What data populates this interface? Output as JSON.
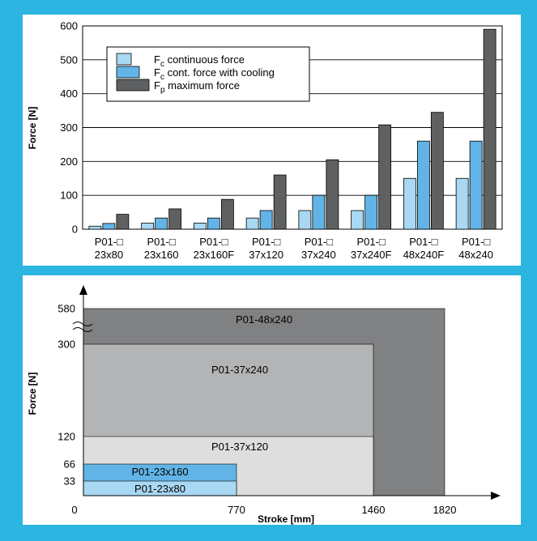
{
  "colors": {
    "background": "#2bb5e0",
    "panel": "#ffffff",
    "continuous": "#a9d8f3",
    "cooling": "#62b4e6",
    "maximum": "#5e6062",
    "region_48x240": "#808183",
    "region_37x240": "#b3b4b5",
    "region_37x120": "#dedede",
    "region_23x160": "#62b4e6",
    "region_23x80": "#a9d8f3"
  },
  "chart_data": [
    {
      "type": "bar",
      "ylabel": "Force [N]",
      "ylim": [
        0,
        600
      ],
      "yticks": [
        0,
        100,
        200,
        300,
        400,
        500,
        600
      ],
      "grid": true,
      "legend_position": "top-left",
      "categories": [
        {
          "line1": "P01-□",
          "line2": "23x80"
        },
        {
          "line1": "P01-□",
          "line2": "23x160"
        },
        {
          "line1": "P01-□",
          "line2": "23x160F"
        },
        {
          "line1": "P01-□",
          "line2": "37x120"
        },
        {
          "line1": "P01-□",
          "line2": "37x240"
        },
        {
          "line1": "P01-□",
          "line2": "37x240F"
        },
        {
          "line1": "P01-□",
          "line2": "48x240F"
        },
        {
          "line1": "P01-□",
          "line2": "48x240"
        }
      ],
      "series": [
        {
          "sym": "F",
          "sub": "c",
          "rest": " continuous force",
          "color_key": "continuous",
          "values": [
            9,
            18,
            18,
            33,
            55,
            55,
            150,
            150
          ]
        },
        {
          "sym": "F",
          "sub": "c",
          "rest": " cont. force with cooling",
          "color_key": "cooling",
          "values": [
            17,
            33,
            33,
            55,
            100,
            100,
            260,
            260
          ]
        },
        {
          "sym": "F",
          "sub": "p",
          "rest": " maximum force",
          "color_key": "maximum",
          "values": [
            44,
            60,
            88,
            160,
            205,
            308,
            345,
            590
          ]
        }
      ]
    },
    {
      "type": "area",
      "xlabel": "Stroke [mm]",
      "ylabel": "Force [N]",
      "xticks": [
        "0",
        "770",
        "1460",
        "1820"
      ],
      "yticks": [
        "33",
        "66",
        "120",
        "300",
        "580"
      ],
      "regions": [
        {
          "label": "P01-48x240",
          "stroke": 1820,
          "force": 580,
          "color_key": "region_48x240"
        },
        {
          "label": "P01-37x240",
          "stroke": 1460,
          "force": 300,
          "color_key": "region_37x240"
        },
        {
          "label": "P01-37x120",
          "stroke": 1460,
          "force": 120,
          "color_key": "region_37x120"
        },
        {
          "label": "P01-23x160",
          "stroke": 770,
          "force": 66,
          "color_key": "region_23x160"
        },
        {
          "label": "P01-23x80",
          "stroke": 770,
          "force": 33,
          "color_key": "region_23x80"
        }
      ]
    }
  ]
}
